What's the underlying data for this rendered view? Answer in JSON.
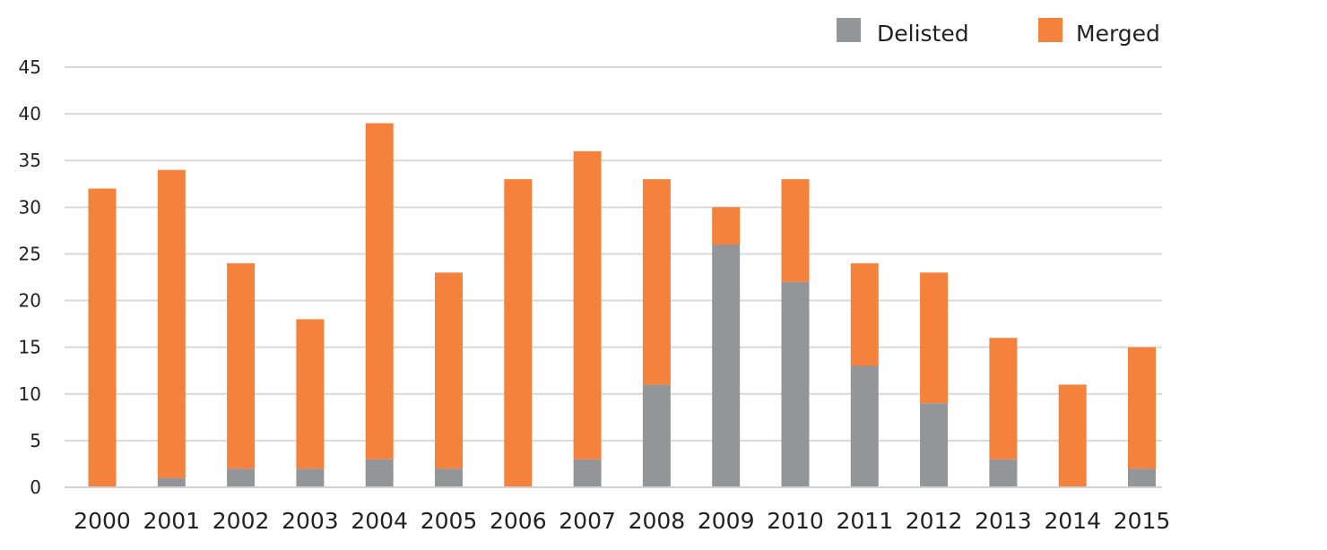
{
  "chart_data": {
    "type": "bar",
    "stacked": true,
    "title": "",
    "xlabel": "",
    "ylabel": "",
    "ylim": [
      0,
      45
    ],
    "yticks": [
      0,
      5,
      10,
      15,
      20,
      25,
      30,
      35,
      40,
      45
    ],
    "grid": true,
    "legend_position": "top-right",
    "categories": [
      "2000",
      "2001",
      "2002",
      "2003",
      "2004",
      "2005",
      "2006",
      "2007",
      "2008",
      "2009",
      "2010",
      "2011",
      "2012",
      "2013",
      "2014",
      "2015"
    ],
    "series": [
      {
        "name": "Delisted",
        "color": "#939598",
        "values": [
          0,
          1,
          2,
          2,
          3,
          2,
          0,
          3,
          11,
          26,
          22,
          13,
          9,
          3,
          0,
          2
        ]
      },
      {
        "name": "Merged",
        "color": "#f4813c",
        "values": [
          32,
          33,
          22,
          16,
          36,
          21,
          33,
          33,
          22,
          4,
          11,
          11,
          14,
          13,
          11,
          13
        ]
      }
    ]
  }
}
